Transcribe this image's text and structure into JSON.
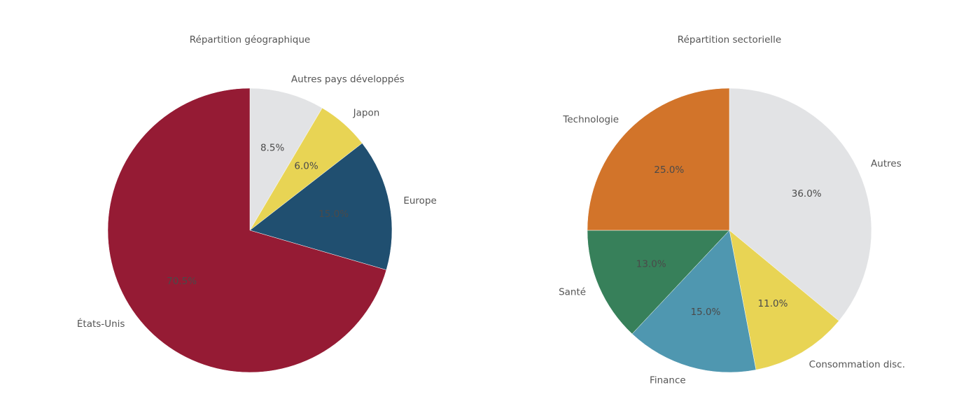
{
  "chart_data": [
    {
      "type": "pie",
      "title": "Répartition géographique",
      "categories": [
        "Autres pays développés",
        "Japon",
        "Europe",
        "États-Unis"
      ],
      "values": [
        8.5,
        6.0,
        15.0,
        70.5
      ],
      "value_labels": [
        "8.5%",
        "6.0%",
        "15.0%",
        "70.5%"
      ],
      "colors": [
        "#e2e3e5",
        "#e8d454",
        "#204f70",
        "#951b34"
      ]
    },
    {
      "type": "pie",
      "title": "Répartition sectorielle",
      "categories": [
        "Autres",
        "Consommation disc.",
        "Finance",
        "Santé",
        "Technologie"
      ],
      "values": [
        36.0,
        11.0,
        15.0,
        13.0,
        25.0
      ],
      "value_labels": [
        "36.0%",
        "11.0%",
        "15.0%",
        "13.0%",
        "25.0%"
      ],
      "colors": [
        "#e2e3e5",
        "#e8d454",
        "#4f97b0",
        "#37805a",
        "#d2742a"
      ]
    }
  ]
}
